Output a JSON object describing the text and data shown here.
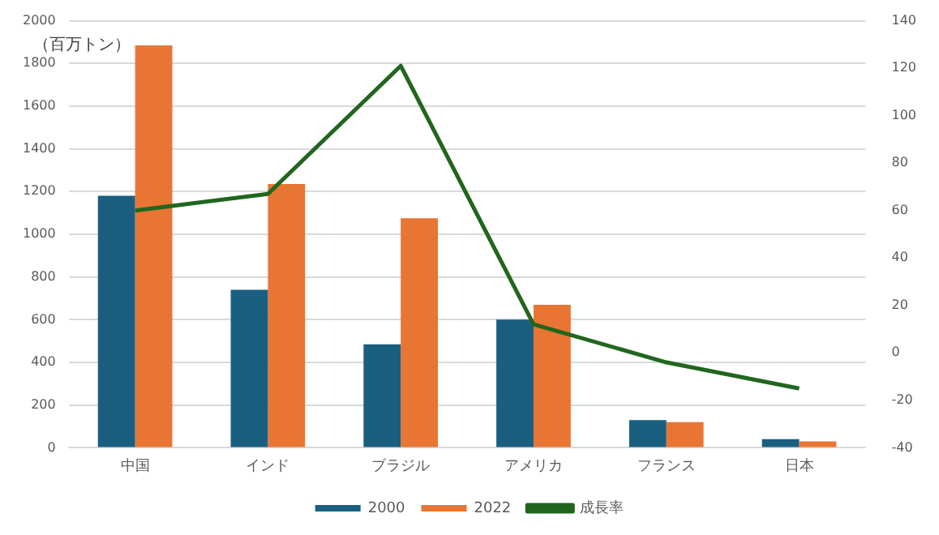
{
  "chart_data": {
    "type": "bar",
    "ylabel": "（百万トン）",
    "categories": [
      "中国",
      "インド",
      "ブラジル",
      "アメリカ",
      "フランス",
      "日本"
    ],
    "series": [
      {
        "name": "2000",
        "color": "#1a5f80",
        "values": [
          1180,
          740,
          485,
          600,
          130,
          40
        ]
      },
      {
        "name": "2022",
        "color": "#e87533",
        "values": [
          1885,
          1235,
          1075,
          670,
          120,
          30
        ]
      },
      {
        "name": "成長率",
        "type": "line",
        "axis": "y2",
        "color": "#21661e",
        "values": [
          60,
          67,
          121,
          12,
          -4,
          -15
        ],
        "marker": "none"
      }
    ],
    "ylim": [
      0,
      2000
    ],
    "yticks": [
      0,
      200,
      400,
      600,
      800,
      1000,
      1200,
      1400,
      1600,
      1800,
      2000
    ],
    "y2lim": [
      -40,
      140
    ],
    "y2ticks": [
      -40,
      -20,
      0,
      20,
      40,
      60,
      80,
      100,
      120,
      140
    ],
    "grid": "y",
    "legend": "bottom"
  }
}
